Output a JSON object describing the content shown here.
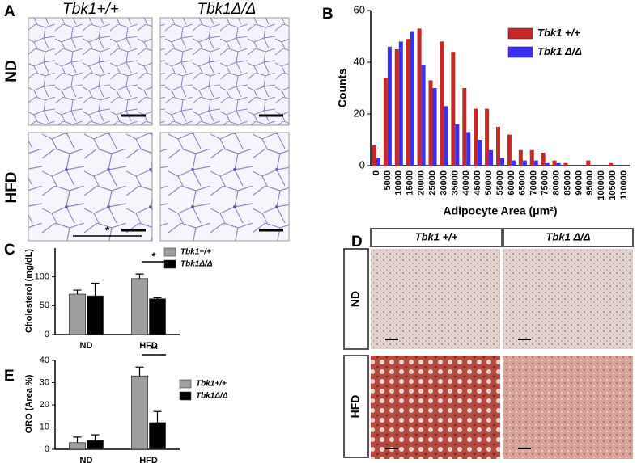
{
  "figure": {
    "panel_a": {
      "label": "A",
      "columns": [
        "Tbk1+/+",
        "Tbk1Δ/Δ"
      ],
      "rows": [
        "ND",
        "HFD"
      ]
    },
    "panel_d": {
      "label": "D",
      "columns": [
        "Tbk1 +/+",
        "Tbk1 Δ/Δ"
      ],
      "rows": [
        "ND",
        "HFD"
      ]
    }
  },
  "chart_data": [
    {
      "label": "B",
      "type": "bar",
      "categories": [
        "0",
        "5000",
        "10000",
        "15000",
        "20000",
        "25000",
        "30000",
        "35000",
        "40000",
        "45000",
        "50000",
        "55000",
        "60000",
        "65000",
        "70000",
        "75000",
        "80000",
        "85000",
        "90000",
        "95000",
        "100000",
        "105000",
        "110000"
      ],
      "series": [
        {
          "name": "Tbk1 +/+",
          "color": "#c62828",
          "values": [
            8,
            34,
            45,
            49,
            53,
            33,
            48,
            44,
            30,
            22,
            22,
            15,
            12,
            6,
            6,
            5,
            2,
            1,
            0,
            2,
            0,
            1,
            0
          ]
        },
        {
          "name": "Tbk1 Δ/Δ",
          "color": "#3b2ff5",
          "values": [
            3,
            46,
            48,
            52,
            39,
            30,
            23,
            16,
            13,
            10,
            6,
            3,
            2,
            2,
            2,
            1,
            1,
            0,
            0,
            0,
            0,
            0,
            0
          ]
        }
      ],
      "ylim": [
        0,
        60
      ],
      "yticks": [
        0,
        20,
        40,
        60
      ],
      "y_label": "Counts",
      "x_label": "Adipocyte Area (μm²)",
      "legend": "upper right"
    },
    {
      "label": "C",
      "type": "bar",
      "categories": [
        "ND",
        "HFD"
      ],
      "series": [
        {
          "name": "Tbk1+/+",
          "color": "#9e9e9e",
          "values": [
            70,
            97
          ],
          "errors": [
            7,
            8
          ]
        },
        {
          "name": "Tbk1Δ/Δ",
          "color": "#000000",
          "values": [
            67,
            62
          ],
          "errors": [
            22,
            2
          ]
        }
      ],
      "ylim": [
        0,
        150
      ],
      "yticks": [
        0,
        50,
        100
      ],
      "y_label": "Cholesterol (mg/dL)",
      "annotations": [
        "*",
        "*"
      ],
      "legend": "upper right"
    },
    {
      "label": "E",
      "type": "bar",
      "categories": [
        "ND",
        "HFD"
      ],
      "series": [
        {
          "name": "Tbk1+/+",
          "color": "#9e9e9e",
          "values": [
            3,
            33
          ],
          "errors": [
            2.5,
            4
          ]
        },
        {
          "name": "Tbk1Δ/Δ",
          "color": "#000000",
          "values": [
            4,
            12
          ],
          "errors": [
            2.5,
            5
          ]
        }
      ],
      "ylim": [
        0,
        40
      ],
      "yticks": [
        0,
        10,
        20,
        30,
        40
      ],
      "y_label": "ORO (Area %)",
      "annotations": [
        "**"
      ],
      "legend": "upper right"
    }
  ]
}
